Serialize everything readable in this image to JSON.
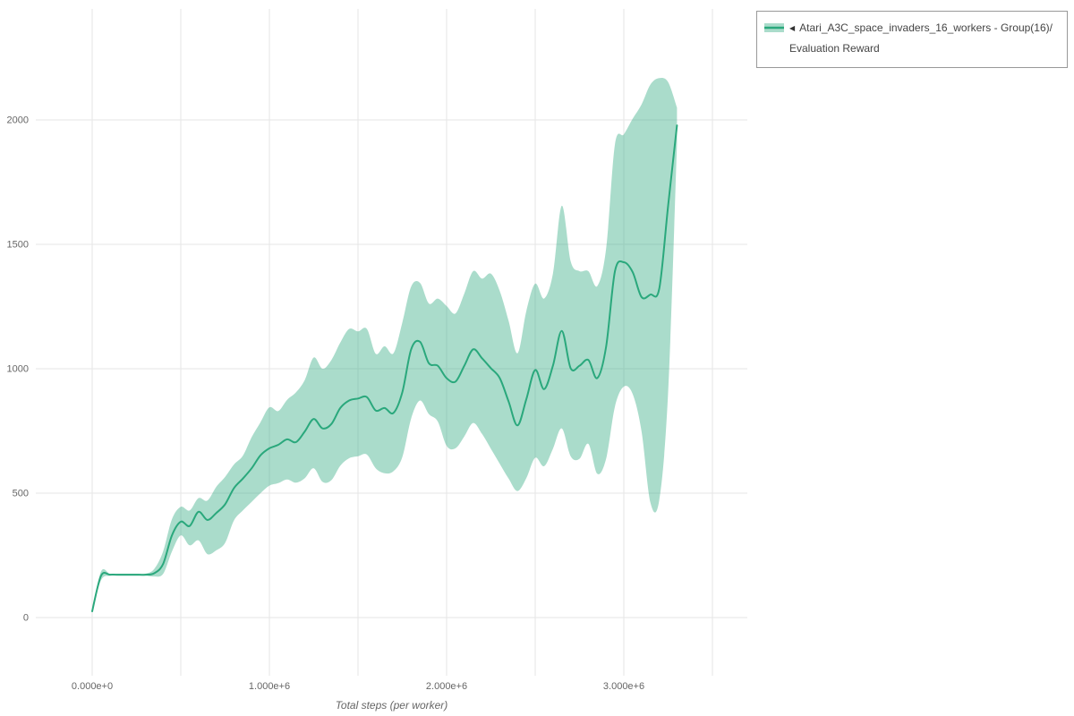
{
  "page": {
    "background": "#ffffff"
  },
  "legend": {
    "collapse_icon": "◀",
    "label_line1": "Atari_A3C_space_invaders_16_workers - Group(16)/",
    "label_line2": "Evaluation Reward"
  },
  "chart_data": {
    "type": "line",
    "title": "",
    "xlabel": "Total steps (per worker)",
    "ylabel": "",
    "grid": true,
    "legend_position": "top-right",
    "xlim": [
      -318000,
      3697000
    ],
    "ylim": [
      -234,
      2446
    ],
    "x_tick_values": [
      0,
      1000000,
      2000000,
      3000000
    ],
    "x_tick_labels": [
      "0.000e+0",
      "1.000e+6",
      "2.000e+6",
      "3.000e+6"
    ],
    "x_grid_values": [
      0,
      500000,
      1000000,
      1500000,
      2000000,
      2500000,
      3000000,
      3500000
    ],
    "y_ticks": [
      0,
      500,
      1000,
      1500,
      2000
    ],
    "series": [
      {
        "name": "Atari_A3C_space_invaders_16_workers - Group(16)/Evaluation Reward",
        "color": "#2aa87c",
        "band_color": "rgba(42,168,124,0.4)",
        "x": [
          0,
          50000,
          100000,
          150000,
          200000,
          250000,
          300000,
          350000,
          400000,
          450000,
          500000,
          550000,
          600000,
          650000,
          700000,
          750000,
          800000,
          850000,
          900000,
          950000,
          1000000,
          1050000,
          1100000,
          1150000,
          1200000,
          1250000,
          1300000,
          1350000,
          1400000,
          1450000,
          1500000,
          1550000,
          1600000,
          1650000,
          1700000,
          1750000,
          1800000,
          1850000,
          1900000,
          1950000,
          2000000,
          2050000,
          2100000,
          2150000,
          2200000,
          2250000,
          2300000,
          2350000,
          2400000,
          2450000,
          2500000,
          2550000,
          2600000,
          2650000,
          2700000,
          2750000,
          2800000,
          2850000,
          2900000,
          2950000,
          3000000,
          3050000,
          3100000,
          3150000,
          3200000,
          3250000,
          3300000
        ],
        "mean": [
          25,
          168,
          172,
          172,
          172,
          172,
          172,
          178,
          215,
          330,
          385,
          368,
          425,
          392,
          420,
          455,
          520,
          558,
          600,
          652,
          680,
          694,
          716,
          705,
          748,
          798,
          760,
          778,
          842,
          872,
          880,
          886,
          832,
          842,
          822,
          905,
          1078,
          1108,
          1022,
          1012,
          962,
          948,
          1012,
          1078,
          1042,
          1002,
          962,
          868,
          772,
          878,
          995,
          918,
          1012,
          1152,
          1002,
          1012,
          1035,
          962,
          1088,
          1392,
          1428,
          1388,
          1288,
          1298,
          1322,
          1655,
          1978
        ],
        "lower": [
          25,
          150,
          168,
          168,
          168,
          168,
          168,
          165,
          175,
          265,
          330,
          290,
          310,
          255,
          270,
          300,
          390,
          430,
          465,
          500,
          530,
          540,
          555,
          542,
          560,
          600,
          545,
          552,
          610,
          640,
          648,
          655,
          600,
          580,
          588,
          645,
          800,
          872,
          818,
          788,
          690,
          680,
          728,
          782,
          738,
          678,
          618,
          558,
          508,
          560,
          642,
          608,
          678,
          760,
          648,
          638,
          698,
          578,
          638,
          848,
          928,
          898,
          748,
          462,
          472,
          905,
          1900
        ],
        "upper": [
          25,
          185,
          176,
          176,
          176,
          176,
          176,
          195,
          265,
          395,
          445,
          430,
          480,
          470,
          525,
          565,
          615,
          650,
          725,
          785,
          845,
          830,
          875,
          905,
          955,
          1045,
          1000,
          1035,
          1105,
          1160,
          1150,
          1160,
          1060,
          1090,
          1062,
          1185,
          1330,
          1345,
          1262,
          1282,
          1252,
          1222,
          1302,
          1392,
          1362,
          1382,
          1312,
          1192,
          1062,
          1232,
          1342,
          1282,
          1382,
          1655,
          1432,
          1392,
          1392,
          1332,
          1482,
          1902,
          1942,
          2005,
          2062,
          2142,
          2168,
          2152,
          2050
        ]
      }
    ]
  }
}
